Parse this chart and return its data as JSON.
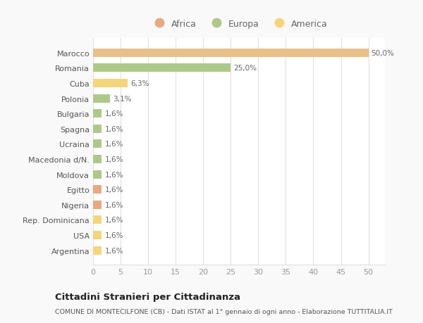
{
  "categories": [
    "Argentina",
    "USA",
    "Rep. Dominicana",
    "Nigeria",
    "Egitto",
    "Moldova",
    "Macedonia d/N.",
    "Ucraina",
    "Spagna",
    "Bulgaria",
    "Polonia",
    "Cuba",
    "Romania",
    "Marocco"
  ],
  "values": [
    1.6,
    1.6,
    1.6,
    1.6,
    1.6,
    1.6,
    1.6,
    1.6,
    1.6,
    1.6,
    3.1,
    6.3,
    25.0,
    50.0
  ],
  "labels": [
    "1,6%",
    "1,6%",
    "1,6%",
    "1,6%",
    "1,6%",
    "1,6%",
    "1,6%",
    "1,6%",
    "1,6%",
    "1,6%",
    "3,1%",
    "6,3%",
    "25,0%",
    "50,0%"
  ],
  "colors": [
    "#f5d57a",
    "#f5d57a",
    "#f5d57a",
    "#e8a882",
    "#e8a882",
    "#adc98a",
    "#adc98a",
    "#adc98a",
    "#adc98a",
    "#adc98a",
    "#adc98a",
    "#f5d57a",
    "#adc98a",
    "#e8c08a"
  ],
  "legend": [
    {
      "label": "Africa",
      "color": "#e8a882"
    },
    {
      "label": "Europa",
      "color": "#adc98a"
    },
    {
      "label": "America",
      "color": "#f5d57a"
    }
  ],
  "xlim": [
    0,
    53
  ],
  "xticks": [
    0,
    5,
    10,
    15,
    20,
    25,
    30,
    35,
    40,
    45,
    50
  ],
  "title": "Cittadini Stranieri per Cittadinanza",
  "subtitle": "COMUNE DI MONTECILFONE (CB) - Dati ISTAT al 1° gennaio di ogni anno - Elaborazione TUTTITALIA.IT",
  "background_color": "#f9f9f9",
  "bar_bg_color": "#ffffff",
  "grid_color": "#e0e0e0"
}
